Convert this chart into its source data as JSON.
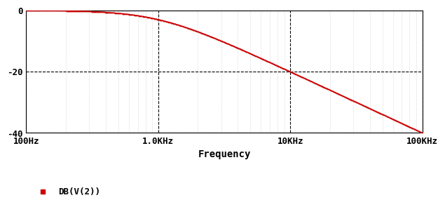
{
  "title": "",
  "xlabel": "Frequency",
  "ylabel": "",
  "fc": 1000,
  "f_start": 100,
  "f_end": 100000,
  "ylim": [
    -40,
    0
  ],
  "yticks": [
    0,
    -20,
    -40
  ],
  "xtick_labels": [
    "100Hz",
    "1.0KHz",
    "10KHz",
    "100KHz"
  ],
  "xtick_values": [
    100,
    1000,
    10000,
    100000
  ],
  "line_color": "#cc0000",
  "line_width": 1.0,
  "marker": "o",
  "marker_size": 1.2,
  "bg_color": "#ffffff",
  "fig_bg_color": "#ffffff",
  "legend_label": "DB(V(2))",
  "legend_marker_color": "#cc0000",
  "grid_major_color": "#000000",
  "grid_minor_color": "#aaaaaa",
  "grid_major_style": "--",
  "grid_minor_style": ":",
  "border_color": "#000000",
  "font_family": "monospace",
  "tick_fontsize": 9,
  "xlabel_fontsize": 10
}
